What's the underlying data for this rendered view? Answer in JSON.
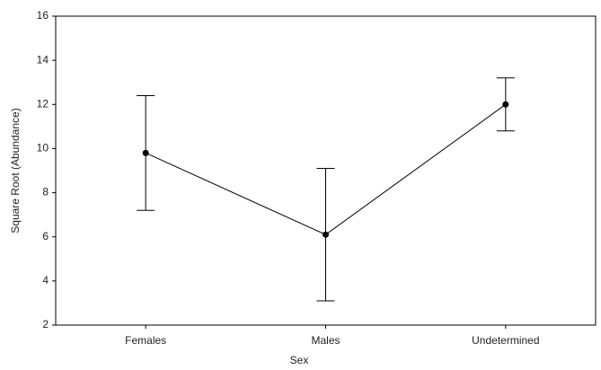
{
  "chart_data": {
    "type": "line",
    "x_label": "Sex",
    "y_label": "Square Root (Abundance)",
    "categories": [
      "Females",
      "Males",
      "Undetermined"
    ],
    "series": [
      {
        "color": "#000000",
        "values": [
          9.8,
          6.1,
          12.0
        ],
        "errors": [
          2.6,
          3.0,
          1.2
        ]
      }
    ],
    "ylim": [
      2,
      16
    ],
    "yticks": [
      2,
      4,
      6,
      8,
      10,
      12,
      14,
      16
    ],
    "grid": false
  }
}
